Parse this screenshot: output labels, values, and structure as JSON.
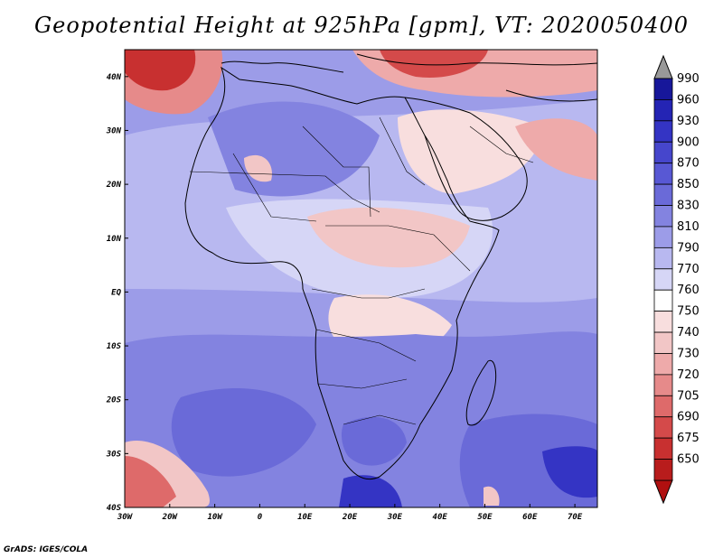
{
  "title": "Geopotential Height at 925hPa [gpm], VT: 2020050400",
  "credit": "GrADS: IGES/COLA",
  "map": {
    "lon_range": [
      -30,
      75
    ],
    "lat_range": [
      -40,
      45
    ],
    "lat_ticks": [
      {
        "value": 40,
        "label": "40N"
      },
      {
        "value": 30,
        "label": "30N"
      },
      {
        "value": 20,
        "label": "20N"
      },
      {
        "value": 10,
        "label": "10N"
      },
      {
        "value": 0,
        "label": "EQ"
      },
      {
        "value": -10,
        "label": "10S"
      },
      {
        "value": -20,
        "label": "20S"
      },
      {
        "value": -30,
        "label": "30S"
      },
      {
        "value": -40,
        "label": "40S"
      }
    ],
    "lon_ticks": [
      {
        "value": -30,
        "label": "30W"
      },
      {
        "value": -20,
        "label": "20W"
      },
      {
        "value": -10,
        "label": "10W"
      },
      {
        "value": 0,
        "label": "0"
      },
      {
        "value": 10,
        "label": "10E"
      },
      {
        "value": 20,
        "label": "20E"
      },
      {
        "value": 30,
        "label": "30E"
      },
      {
        "value": 40,
        "label": "40E"
      },
      {
        "value": 50,
        "label": "50E"
      },
      {
        "value": 60,
        "label": "60E"
      },
      {
        "value": 70,
        "label": "70E"
      }
    ]
  },
  "colorbar": {
    "levels": [
      "990",
      "960",
      "930",
      "900",
      "870",
      "850",
      "830",
      "810",
      "790",
      "770",
      "760",
      "750",
      "740",
      "730",
      "720",
      "705",
      "690",
      "675",
      "650"
    ],
    "colors": [
      "#17179a",
      "#2424b4",
      "#3434c4",
      "#4646cc",
      "#5858d4",
      "#6a6ad8",
      "#8383e0",
      "#9c9ce8",
      "#b8b8f0",
      "#d6d6f6",
      "#ffffff",
      "#f8dede",
      "#f2c6c6",
      "#eeaaaa",
      "#e68a8a",
      "#de6a6a",
      "#d44a4a",
      "#c83030",
      "#b81c1c"
    ],
    "over_color": "#999999",
    "under_color": "#b01010"
  }
}
